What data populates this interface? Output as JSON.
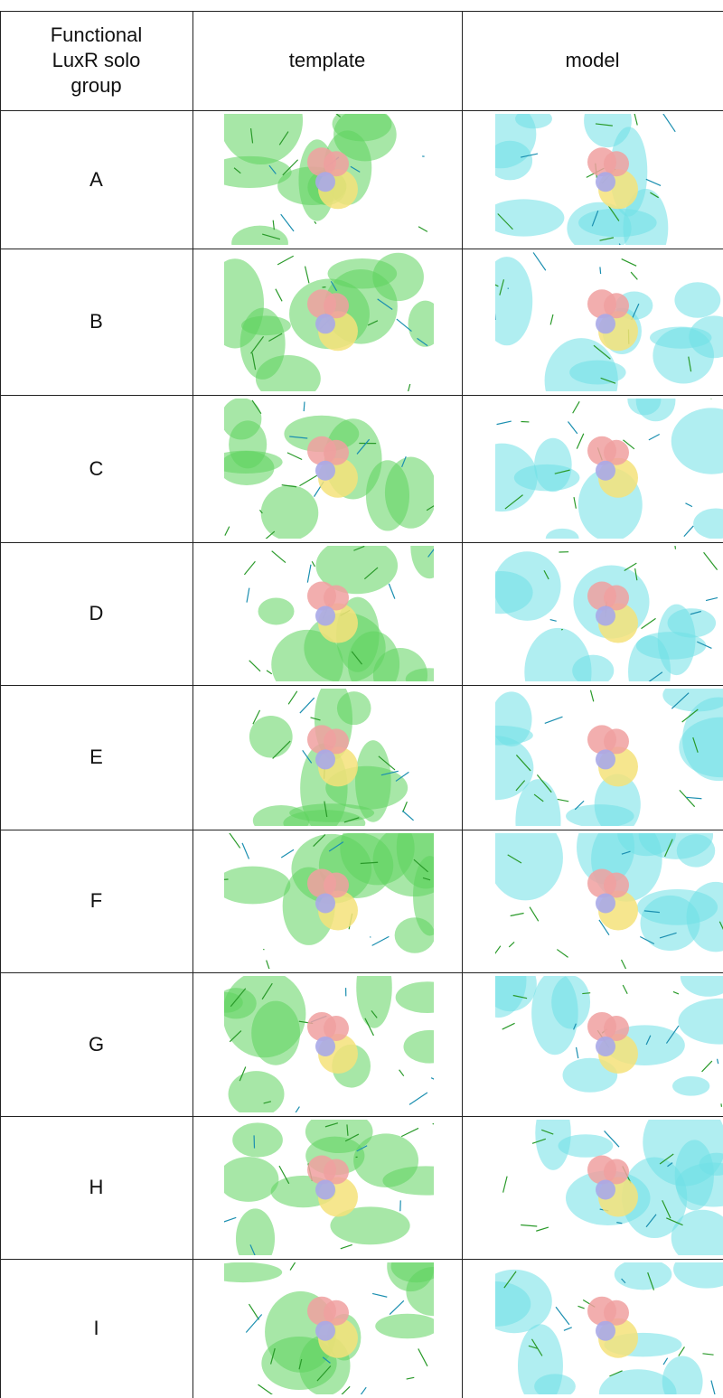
{
  "table": {
    "header": [
      "Functional LuxR solo group",
      "template",
      "model"
    ],
    "rows": [
      [
        "A"
      ],
      [
        "B"
      ],
      [
        "C"
      ],
      [
        "D"
      ],
      [
        "E"
      ],
      [
        "F"
      ],
      [
        "G"
      ],
      [
        "H"
      ],
      [
        "I"
      ]
    ]
  }
}
